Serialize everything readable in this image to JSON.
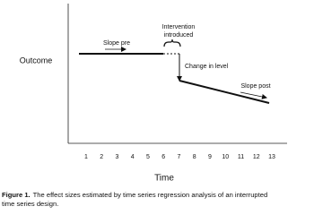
{
  "axes": {
    "y_label": "Outcome",
    "x_label": "Time",
    "x_ticks": [
      "1",
      "2",
      "3",
      "4",
      "5",
      "6",
      "7",
      "8",
      "9",
      "10",
      "11",
      "12",
      "13"
    ]
  },
  "annotations": {
    "slope_pre": "Slope pre",
    "intervention": [
      "Intervention",
      "introduced"
    ],
    "change_in_level": "Change in level",
    "slope_post": "Slope post"
  },
  "caption": {
    "label": "Figure 1.",
    "text": [
      "The effect sizes estimated by time series regression analysis of an interrupted",
      "time series design."
    ]
  }
}
